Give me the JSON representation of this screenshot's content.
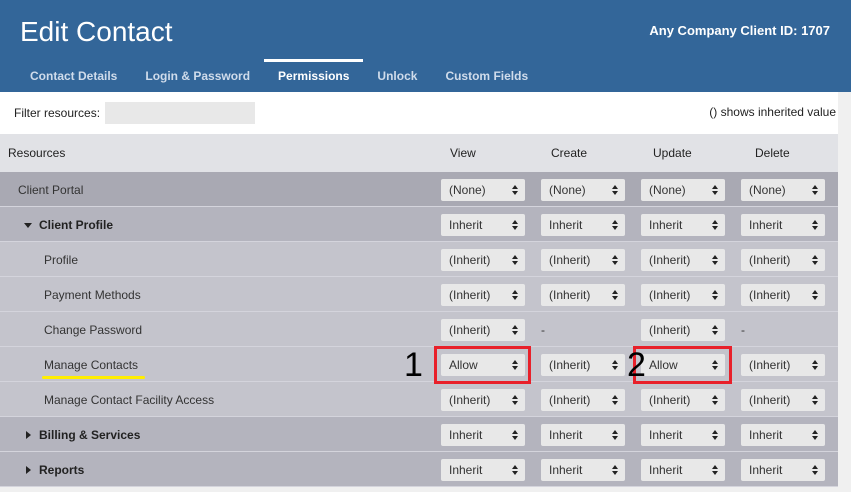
{
  "header": {
    "title": "Edit Contact",
    "client_id": "Any Company Client ID: 1707",
    "tabs": [
      {
        "label": "Contact Details"
      },
      {
        "label": "Login & Password"
      },
      {
        "label": "Permissions",
        "active": true
      },
      {
        "label": "Unlock"
      },
      {
        "label": "Custom Fields"
      }
    ]
  },
  "filter": {
    "label": "Filter resources:",
    "value": "",
    "hint": "() shows inherited value"
  },
  "columns": [
    "Resources",
    "View",
    "Create",
    "Update",
    "Delete"
  ],
  "rows": [
    {
      "name": "Client Portal",
      "level": 0,
      "values": [
        "(None)",
        "(None)",
        "(None)",
        "(None)"
      ]
    },
    {
      "name": "Client Profile",
      "level": 1,
      "caret": "down",
      "values": [
        "Inherit",
        "Inherit",
        "Inherit",
        "Inherit"
      ]
    },
    {
      "name": "Profile",
      "level": 2,
      "values": [
        "(Inherit)",
        "(Inherit)",
        "(Inherit)",
        "(Inherit)"
      ]
    },
    {
      "name": "Payment Methods",
      "level": 2,
      "values": [
        "(Inherit)",
        "(Inherit)",
        "(Inherit)",
        "(Inherit)"
      ]
    },
    {
      "name": "Change Password",
      "level": 2,
      "values": [
        "(Inherit)",
        "-",
        "(Inherit)",
        "-"
      ]
    },
    {
      "name": "Manage Contacts",
      "level": 2,
      "values": [
        "Allow",
        "(Inherit)",
        "Allow",
        "(Inherit)"
      ]
    },
    {
      "name": "Manage Contact Facility Access",
      "level": 2,
      "values": [
        "(Inherit)",
        "(Inherit)",
        "(Inherit)",
        "(Inherit)"
      ]
    },
    {
      "name": "Billing & Services",
      "level": 1,
      "caret": "right",
      "values": [
        "Inherit",
        "Inherit",
        "Inherit",
        "Inherit"
      ]
    },
    {
      "name": "Reports",
      "level": 1,
      "caret": "right",
      "values": [
        "Inherit",
        "Inherit",
        "Inherit",
        "Inherit"
      ]
    }
  ],
  "annotations": {
    "label1": "1",
    "label2": "2",
    "highlight_color": "#e8202a",
    "underline_color": "#ffee00"
  },
  "colors": {
    "header": "#336699"
  }
}
